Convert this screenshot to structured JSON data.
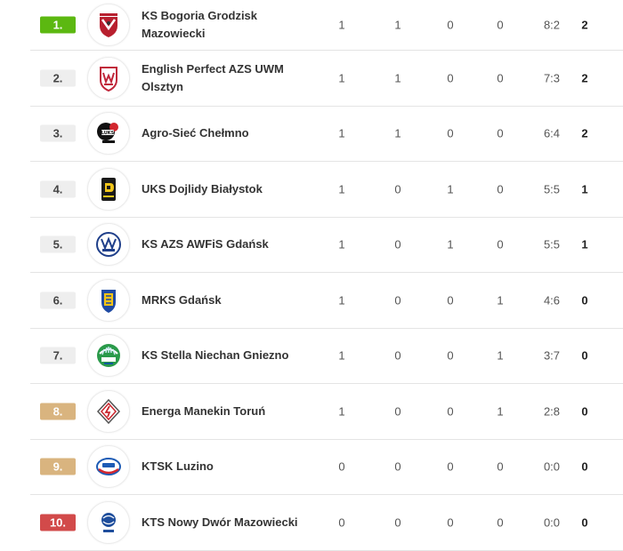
{
  "standings": [
    {
      "position": "1.",
      "badge": "green",
      "team": "KS Bogoria Grodzisk Mazowiecki",
      "logo": "bogoria-logo-icon",
      "played": "1",
      "won": "1",
      "drawn": "0",
      "lost": "0",
      "score": "8:2",
      "points": "2"
    },
    {
      "position": "2.",
      "badge": "grey",
      "team": "English Perfect AZS UWM Olsztyn",
      "logo": "azs-uwm-logo-icon",
      "played": "1",
      "won": "1",
      "drawn": "0",
      "lost": "0",
      "score": "7:3",
      "points": "2"
    },
    {
      "position": "3.",
      "badge": "grey",
      "team": "Agro-Sieć Chełmno",
      "logo": "luks-chelmno-logo-icon",
      "played": "1",
      "won": "1",
      "drawn": "0",
      "lost": "0",
      "score": "6:4",
      "points": "2"
    },
    {
      "position": "4.",
      "badge": "grey",
      "team": "UKS Dojlidy Białystok",
      "logo": "dojlidy-logo-icon",
      "played": "1",
      "won": "0",
      "drawn": "1",
      "lost": "0",
      "score": "5:5",
      "points": "1"
    },
    {
      "position": "5.",
      "badge": "grey",
      "team": "KS AZS AWFiS Gdańsk",
      "logo": "azs-awfis-logo-icon",
      "played": "1",
      "won": "0",
      "drawn": "1",
      "lost": "0",
      "score": "5:5",
      "points": "1"
    },
    {
      "position": "6.",
      "badge": "grey",
      "team": "MRKS Gdańsk",
      "logo": "mrks-logo-icon",
      "played": "1",
      "won": "0",
      "drawn": "0",
      "lost": "1",
      "score": "4:6",
      "points": "0"
    },
    {
      "position": "7.",
      "badge": "grey",
      "team": "KS Stella Niechan Gniezno",
      "logo": "stella-logo-icon",
      "played": "1",
      "won": "0",
      "drawn": "0",
      "lost": "1",
      "score": "3:7",
      "points": "0"
    },
    {
      "position": "8.",
      "badge": "tan",
      "team": "Energa Manekin Toruń",
      "logo": "manekin-logo-icon",
      "played": "1",
      "won": "0",
      "drawn": "0",
      "lost": "1",
      "score": "2:8",
      "points": "0"
    },
    {
      "position": "9.",
      "badge": "tan",
      "team": "KTSK Luzino",
      "logo": "luzino-logo-icon",
      "played": "0",
      "won": "0",
      "drawn": "0",
      "lost": "0",
      "score": "0:0",
      "points": "0"
    },
    {
      "position": "10.",
      "badge": "red",
      "team": "KTS Nowy Dwór Mazowiecki",
      "logo": "kts-logo-icon",
      "played": "0",
      "won": "0",
      "drawn": "0",
      "lost": "0",
      "score": "0:0",
      "points": "0"
    }
  ],
  "colors": {
    "badge_green": "#5cb811",
    "badge_grey": "#eeeeee",
    "badge_tan": "#d9b47f",
    "badge_red": "#d24a4a"
  }
}
